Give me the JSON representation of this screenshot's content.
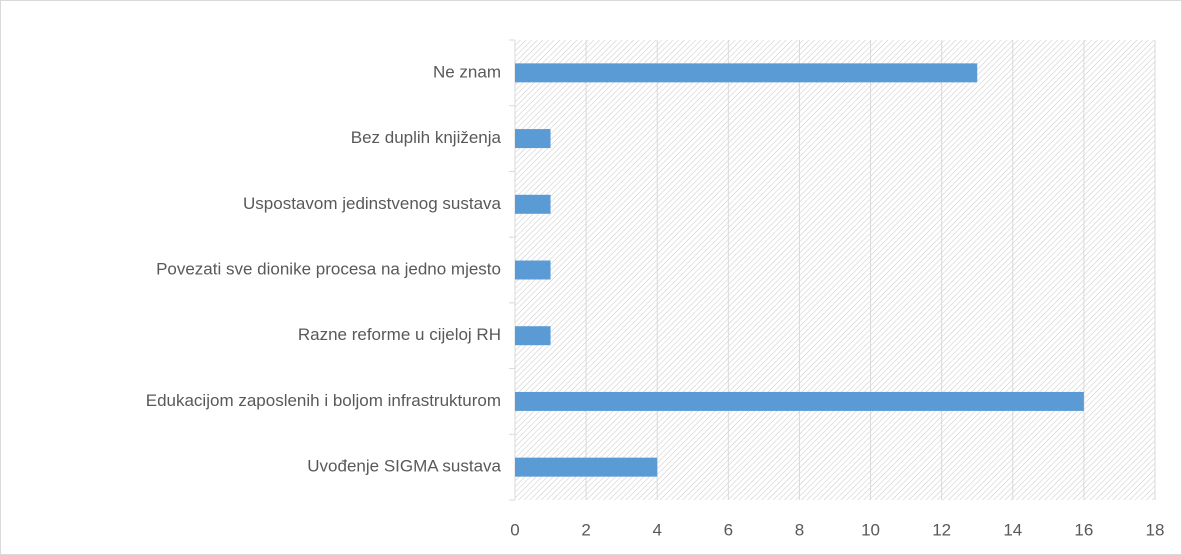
{
  "chart_data": {
    "type": "bar",
    "orientation": "horizontal",
    "categories": [
      "Ne znam",
      "Bez duplih knjiženja",
      "Uspostavom jedinstvenog sustava",
      "Povezati sve dionike procesa na jedno mjesto",
      "Razne reforme u cijeloj RH",
      "Edukacijom zaposlenih i boljom infrastrukturom",
      "Uvođenje SIGMA sustava"
    ],
    "values": [
      13,
      1,
      1,
      1,
      1,
      16,
      4
    ],
    "color": "#5b9bd5",
    "xlim": [
      0,
      18
    ],
    "xticks": [
      0,
      2,
      4,
      6,
      8,
      10,
      12,
      14,
      16,
      18
    ],
    "grid": true
  }
}
